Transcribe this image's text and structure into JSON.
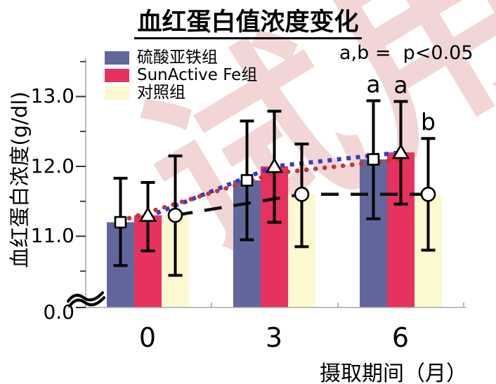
{
  "title": "血红蛋白值浓度变化",
  "watermark_text": "试用",
  "annotation": "a,b =  p<0.05",
  "legend": {
    "items": [
      {
        "label": "硫酸亚铁组",
        "color": "#62679b"
      },
      {
        "label": "SunActive Fe组",
        "color": "#e7315f"
      },
      {
        "label": "对照组",
        "color": "#fcf9d0"
      }
    ]
  },
  "axes": {
    "y_title": "血红蛋白浓度(g/dl)",
    "x_title": "摄取期间（月）",
    "y_tick_labels": [
      "13.0",
      "12.0",
      "11.0",
      "0.0"
    ],
    "x_tick_labels": [
      "0",
      "3",
      "6"
    ]
  },
  "chart_data": {
    "type": "bar",
    "title": "血红蛋白值浓度变化",
    "xlabel": "摄取期间（月）",
    "ylabel": "血红蛋白浓度(g/dl)",
    "categories": [
      "0",
      "3",
      "6"
    ],
    "y_axis": {
      "major_ticks": [
        13.0,
        12.0,
        11.0
      ],
      "minor_ticks": [
        13.5,
        12.5,
        11.5,
        10.5
      ],
      "baseline_label": "0.0",
      "axis_break": true,
      "shown_range": [
        10.4,
        13.6
      ]
    },
    "grid": false,
    "legend_position": "top-left",
    "series": [
      {
        "name": "硫酸亚铁组",
        "bar_color": "#62679b",
        "marker": "square",
        "values": [
          11.2,
          11.8,
          12.1
        ],
        "whisker_low": [
          10.58,
          10.95,
          11.25
        ],
        "whisker_high": [
          11.83,
          12.65,
          12.94
        ]
      },
      {
        "name": "SunActive Fe组",
        "bar_color": "#e7315f",
        "marker": "triangle",
        "values": [
          11.3,
          12.0,
          12.2
        ],
        "whisker_low": [
          10.79,
          11.2,
          11.46
        ],
        "whisker_high": [
          11.77,
          12.79,
          12.93
        ]
      },
      {
        "name": "对照组",
        "bar_color": "#fcf9d0",
        "marker": "circle",
        "values": [
          11.3,
          11.6,
          11.6
        ],
        "whisker_low": [
          10.44,
          10.85,
          10.8
        ],
        "whisker_high": [
          12.15,
          12.32,
          12.4
        ]
      }
    ],
    "trend_lines": [
      {
        "name": "blue-dotted-trend",
        "color": "#383bc4",
        "style": "square-dot",
        "points": [
          [
            1,
            11.28
          ],
          [
            4,
            12.0
          ],
          [
            7,
            12.2
          ]
        ]
      },
      {
        "name": "red-dotted-trend",
        "color": "#c93434",
        "style": "round-dot",
        "points": [
          [
            0,
            11.22
          ],
          [
            4,
            11.9
          ],
          [
            7,
            12.1
          ]
        ]
      },
      {
        "name": "black-dashed-trend",
        "color": "#111111",
        "style": "dash",
        "points": [
          [
            2,
            11.3
          ],
          [
            5,
            11.6
          ],
          [
            8,
            11.6
          ]
        ]
      }
    ],
    "significance": [
      {
        "label": "a",
        "slot": 6
      },
      {
        "label": "a",
        "slot": 7
      },
      {
        "label": "b",
        "slot": 8
      }
    ],
    "annotation": "a,b =  p<0.05"
  }
}
